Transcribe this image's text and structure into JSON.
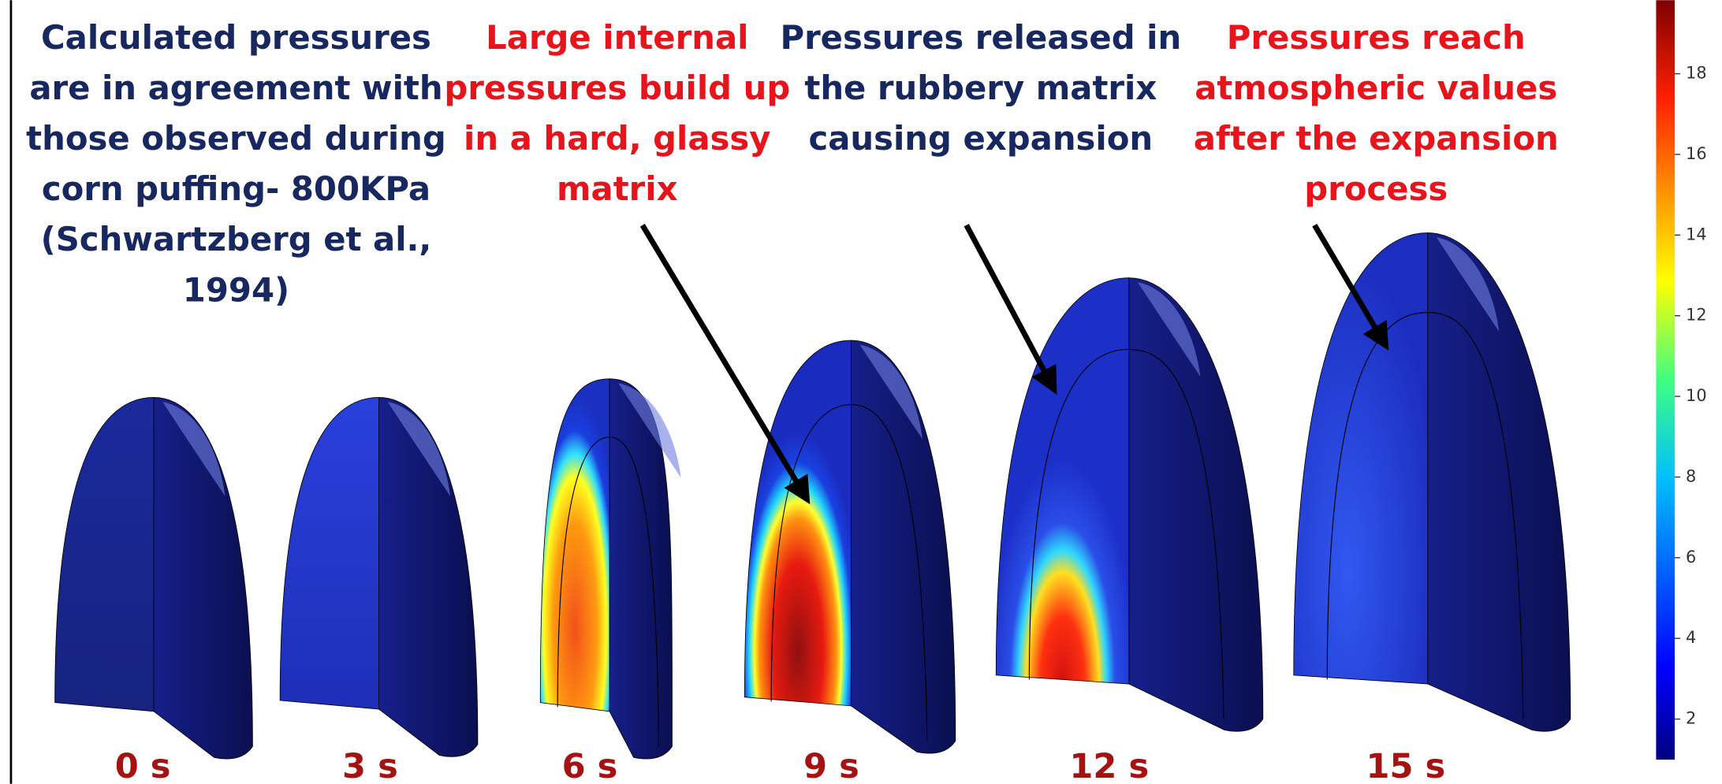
{
  "annotations": [
    {
      "color": "#172760",
      "lines": [
        "Calculated pressures",
        "are in agreement with",
        "those observed during",
        "corn puffing- 800KPa",
        "(Schwartzberg et al.,",
        "1994)"
      ]
    },
    {
      "color": "#e8141c",
      "lines": [
        "Large internal",
        "pressures build up",
        "in a hard, glassy",
        "matrix"
      ]
    },
    {
      "color": "#172760",
      "lines": [
        "Pressures released in",
        "the rubbery matrix",
        "causing expansion"
      ]
    },
    {
      "color": "#e8141c",
      "lines": [
        "Pressures reach",
        "atmospheric values",
        "after the expansion",
        "process"
      ]
    }
  ],
  "frames": [
    "0 s",
    "3 s",
    "6 s",
    "9 s",
    "12 s",
    "15 s"
  ],
  "colorbar": {
    "ticks": [
      2,
      4,
      6,
      8,
      10,
      12,
      14,
      16,
      18
    ]
  }
}
